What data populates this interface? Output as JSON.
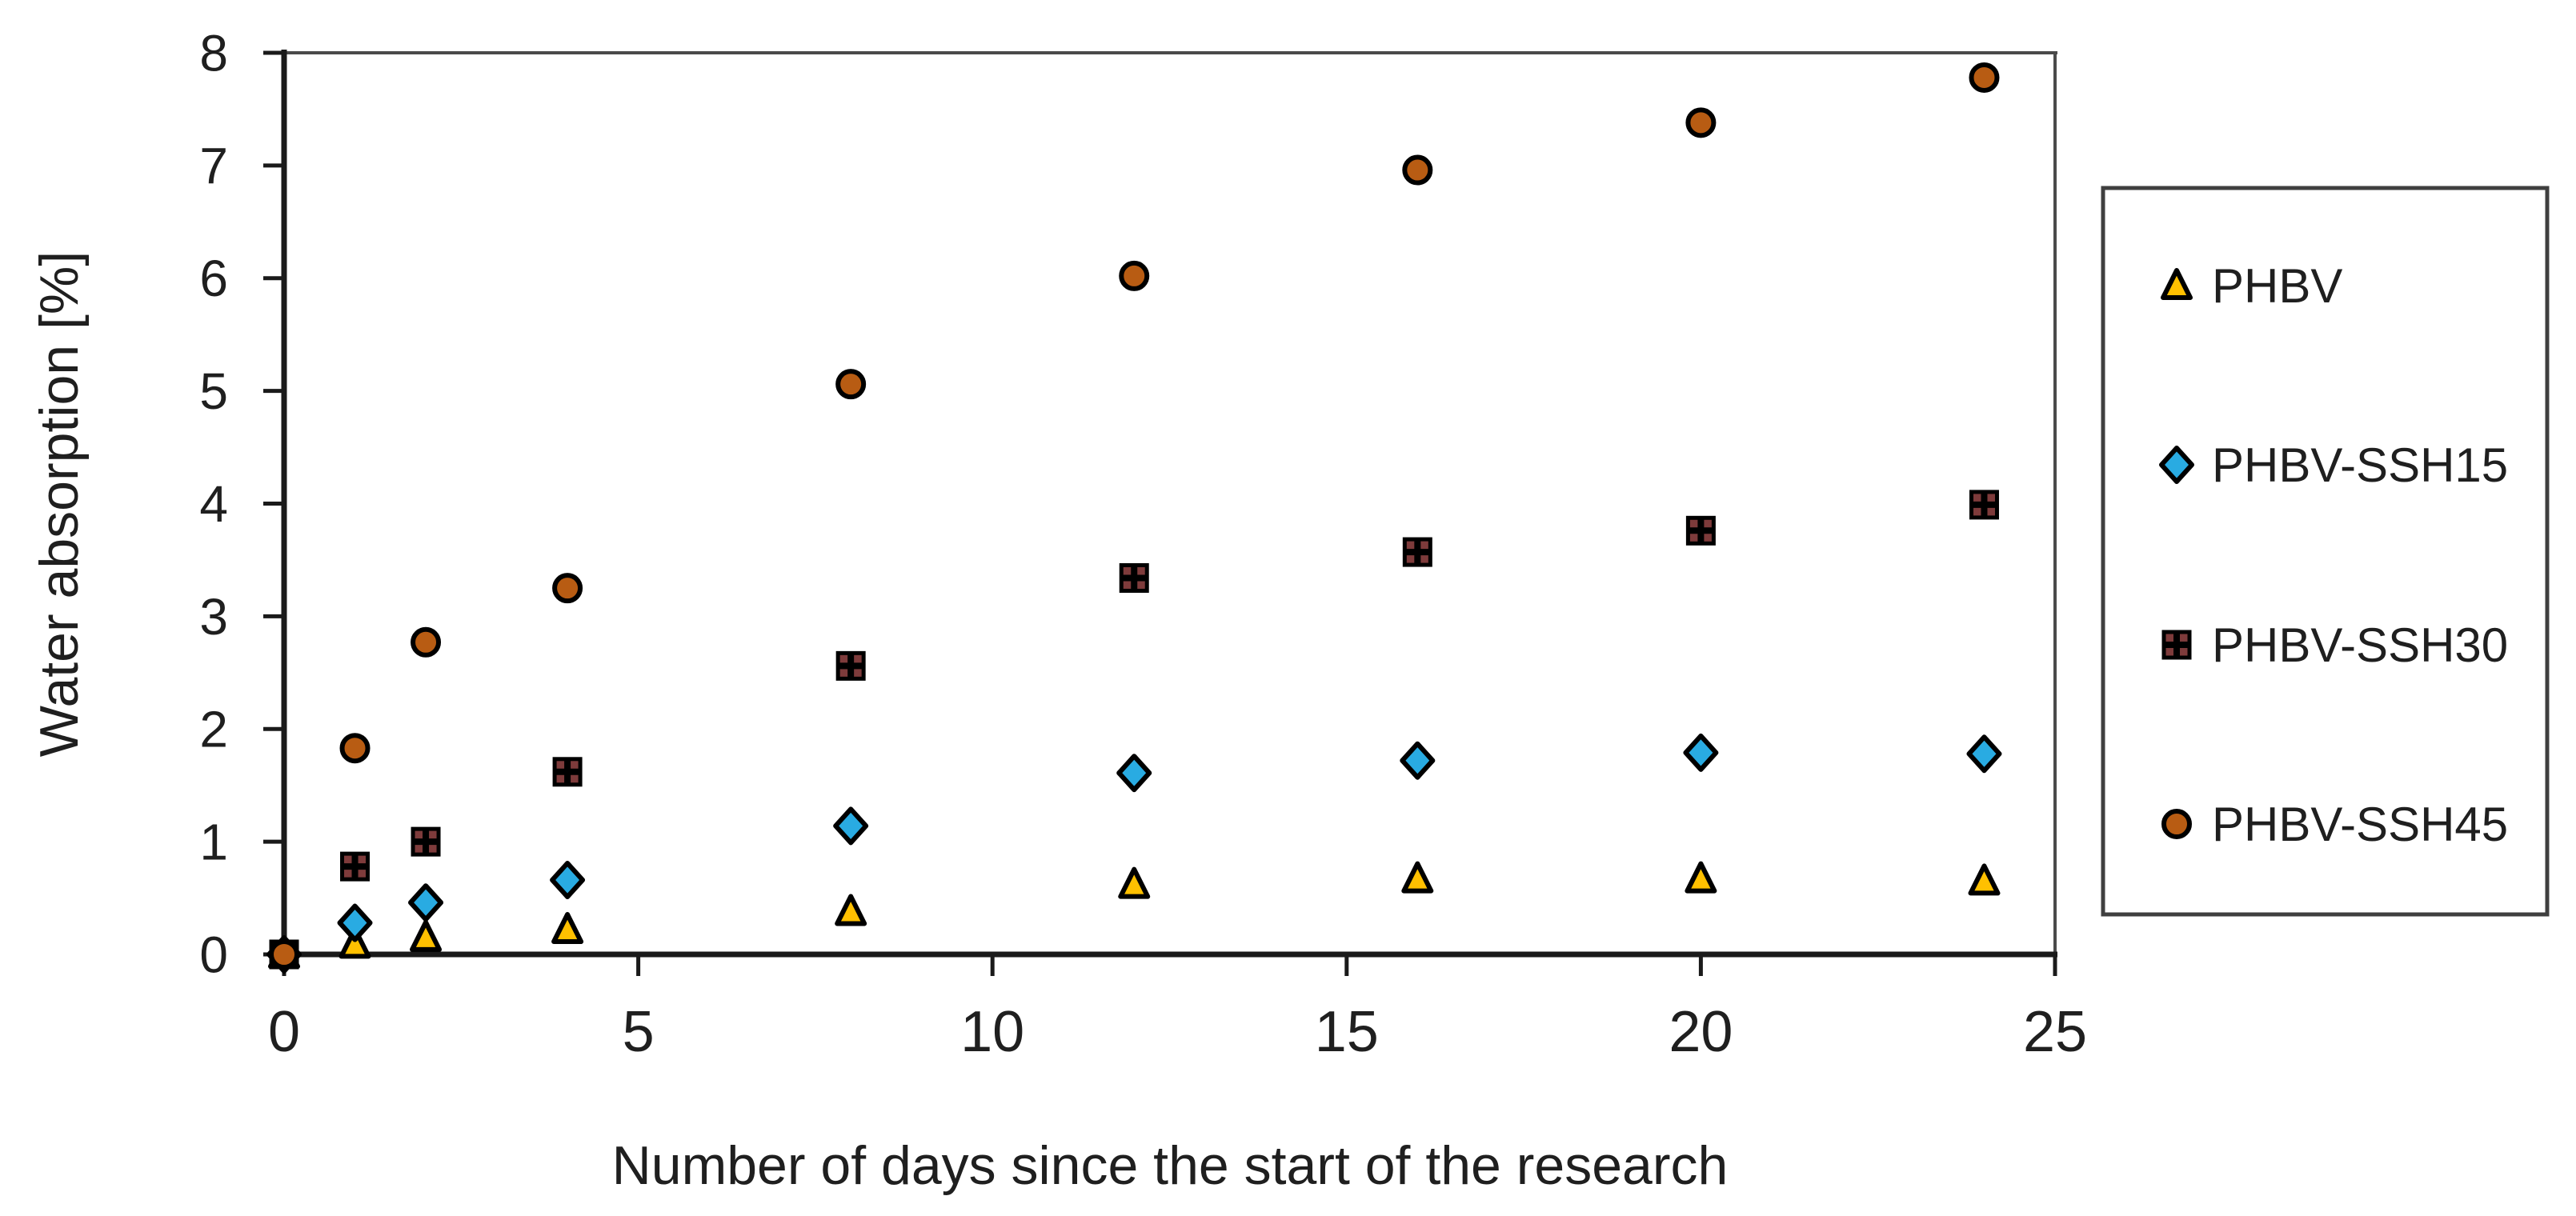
{
  "page": {
    "background": "#FFFFFF"
  },
  "chart_data": {
    "type": "scatter",
    "title": "",
    "xlabel": "Number of days since the start of the research",
    "ylabel": "Water absorption [%]",
    "xlim": [
      0,
      25
    ],
    "ylim": [
      0,
      8
    ],
    "x_ticks": [
      0,
      5,
      10,
      15,
      20,
      25
    ],
    "y_ticks": [
      0,
      1,
      2,
      3,
      4,
      5,
      6,
      7,
      8
    ],
    "grid": false,
    "legend_position": "right-outside",
    "x_days": [
      0,
      1,
      2,
      4,
      8,
      12,
      16,
      20,
      24
    ],
    "series": [
      {
        "name": "PHBV",
        "marker": "triangle",
        "fill": "#FFC000",
        "values": [
          0,
          0.09,
          0.15,
          0.22,
          0.38,
          0.62,
          0.67,
          0.67,
          0.65
        ]
      },
      {
        "name": "PHBV-SSH15",
        "marker": "diamond",
        "fill": "#29ABE2",
        "values": [
          0,
          0.28,
          0.46,
          0.66,
          1.14,
          1.61,
          1.72,
          1.79,
          1.78
        ]
      },
      {
        "name": "PHBV-SSH30",
        "marker": "square-cross",
        "fill": "#7E3B3B",
        "values": [
          0,
          0.78,
          1.0,
          1.62,
          2.56,
          3.34,
          3.57,
          3.76,
          3.99
        ]
      },
      {
        "name": "PHBV-SSH45",
        "marker": "circle",
        "fill": "#B85C13",
        "values": [
          0,
          1.83,
          2.77,
          3.25,
          5.06,
          6.02,
          6.96,
          7.38,
          7.78
        ]
      }
    ],
    "marker_stroke": "#000000",
    "axis_color": "#1A1A1A",
    "frame_color": "#4A4A4A",
    "text_color": "#1F1F1F"
  }
}
